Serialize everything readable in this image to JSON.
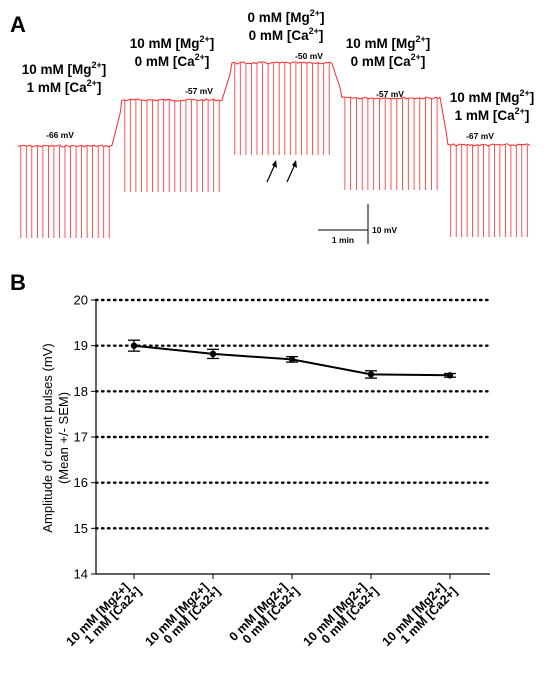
{
  "figure": {
    "panel_a_letter": "A",
    "panel_b_letter": "B"
  },
  "trace": {
    "color": "#ff2a2a",
    "segments": [
      {
        "mg": "10 mM [Mg",
        "ca": "1 mM [Ca",
        "mg_sup": "2+",
        "ca_sup": "2+",
        "close": "]",
        "mv": "-66 mV"
      },
      {
        "mg": "10 mM [Mg",
        "ca": "0 mM [Ca",
        "mg_sup": "2+",
        "ca_sup": "2+",
        "close": "]",
        "mv": "-57 mV"
      },
      {
        "mg": "0 mM [Mg",
        "ca": "0 mM [Ca",
        "mg_sup": "2+",
        "ca_sup": "2+",
        "close": "]",
        "mv": "-50 mV"
      },
      {
        "mg": "10 mM [Mg",
        "ca": "0 mM [Ca",
        "mg_sup": "2+",
        "ca_sup": "2+",
        "close": "]",
        "mv": "-57 mV"
      },
      {
        "mg": "10 mM [Mg",
        "ca": "1 mM [Ca",
        "mg_sup": "2+",
        "ca_sup": "2+",
        "close": "]",
        "mv": "-67 mV"
      }
    ],
    "scale_time": "1 min",
    "scale_voltage": "10 mV"
  },
  "chart_data": {
    "type": "line",
    "categories": [
      [
        "10 mM [Mg2+]",
        "1 mM [Ca2+]"
      ],
      [
        "10 mM [Mg2+]",
        "0 mM [Ca2+]"
      ],
      [
        "0 mM [Mg2+]",
        "0 mM [Ca2+]"
      ],
      [
        "10 mM [Mg2+]",
        "0 mM [Ca2+]"
      ],
      [
        "10 mM [Mg2+]",
        "1 mM [Ca2+]"
      ]
    ],
    "values": [
      19.0,
      18.82,
      18.7,
      18.37,
      18.35
    ],
    "errors": [
      0.12,
      0.1,
      0.06,
      0.08,
      0.04
    ],
    "ylabel_line1": "Amplitude of current pulses (mV)",
    "ylabel_line2": "(Mean +/- SEM)",
    "ylim": [
      14,
      20
    ],
    "yticks": [
      14,
      15,
      16,
      17,
      18,
      19,
      20
    ],
    "gridlines": [
      15,
      16,
      17,
      18,
      19,
      20
    ],
    "grid_style": "dotted",
    "line_color": "#000000"
  }
}
